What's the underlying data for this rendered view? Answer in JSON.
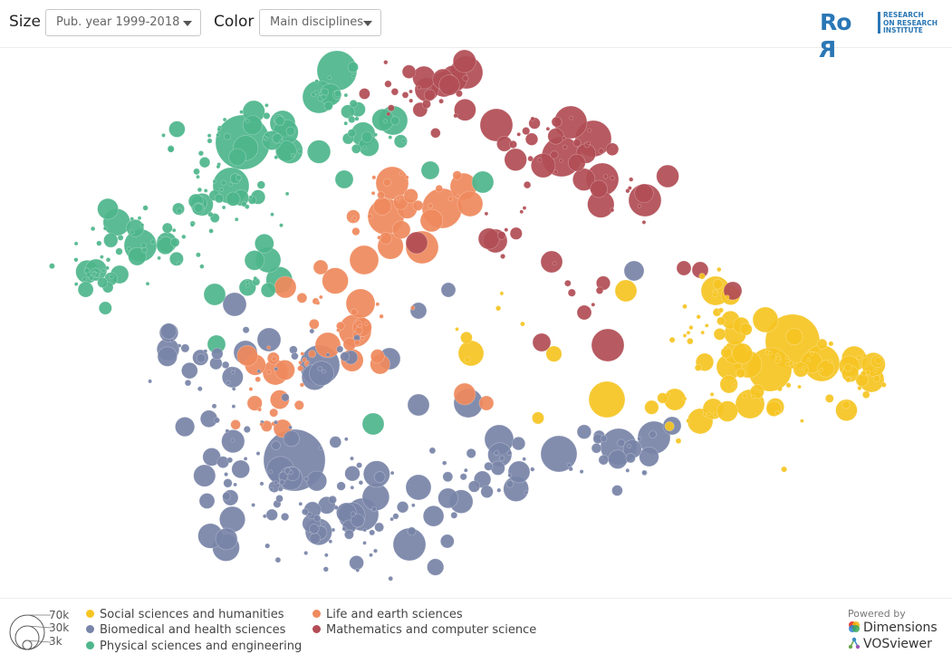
{
  "controls": {
    "size_label": "Size",
    "size_value": "Pub. year 1999-2018",
    "color_label": "Color",
    "color_value": "Main disciplines"
  },
  "logo": {
    "mark": "RoR",
    "line1": "RESEARCH",
    "line2": "ON RESEARCH",
    "line3": "INSTITUTE",
    "color": "#2a77b5"
  },
  "legend": {
    "size_labels": [
      "70k",
      "30k",
      "3k"
    ],
    "items": [
      {
        "label": "Social sciences and humanities",
        "color": "#f5c523"
      },
      {
        "label": "Biomedical and health sciences",
        "color": "#7884a8"
      },
      {
        "label": "Physical sciences and engineering",
        "color": "#4fb68c"
      },
      {
        "label": "Life and earth sciences",
        "color": "#ef8a5e"
      },
      {
        "label": "Mathematics and computer science",
        "color": "#b24d55"
      }
    ]
  },
  "powered": {
    "label": "Powered by",
    "dimensions": "Dimensions",
    "vosviewer": "VOSviewer"
  },
  "chart_data": {
    "type": "scatter",
    "title": "",
    "xlabel": "",
    "ylabel": "",
    "size_variable": "Pub. year 1999-2018",
    "color_variable": "Main disciplines",
    "size_legend": [
      70000,
      30000,
      3000
    ],
    "x_range": [
      0,
      1051
    ],
    "y_range": [
      0,
      607
    ],
    "series": [
      {
        "name": "Physical sciences and engineering",
        "color": "#4fb68c",
        "clusters": [
          [
            270,
            105,
            70,
            42,
            40
          ],
          [
            245,
            170,
            60,
            30,
            36
          ],
          [
            155,
            215,
            55,
            28,
            32
          ],
          [
            105,
            250,
            30,
            22,
            22
          ],
          [
            370,
            55,
            28,
            20,
            16
          ],
          [
            410,
            95,
            35,
            25,
            18
          ],
          [
            290,
            260,
            20,
            20,
            8
          ]
        ],
        "bubbles": [
          [
            372,
            25,
            22
          ],
          [
            268,
            104,
            30
          ],
          [
            352,
            54,
            18
          ],
          [
            255,
            152,
            20
          ],
          [
            434,
            80,
            16
          ],
          [
            155,
            218,
            18
          ],
          [
            312,
            83,
            14
          ],
          [
            296,
            234,
            14
          ],
          [
            380,
            145,
            10
          ],
          [
            237,
            272,
            12
          ],
          [
            239,
            327,
            10
          ],
          [
            412,
            415,
            12
          ],
          [
            533,
            148,
            12
          ],
          [
            475,
            135,
            10
          ],
          [
            106,
            245,
            12
          ],
          [
            132,
            250,
            10
          ]
        ]
      },
      {
        "name": "Mathematics and computer science",
        "color": "#b24d55",
        "clusters": [
          [
            470,
            50,
            50,
            25,
            26
          ],
          [
            620,
            105,
            60,
            35,
            28
          ],
          [
            690,
            155,
            40,
            30,
            14
          ],
          [
            560,
            200,
            40,
            35,
            8
          ],
          [
            630,
            270,
            40,
            40,
            6
          ]
        ],
        "bubbles": [
          [
            515,
            27,
            18
          ],
          [
            490,
            40,
            14
          ],
          [
            548,
            85,
            18
          ],
          [
            630,
            82,
            18
          ],
          [
            655,
            100,
            20
          ],
          [
            620,
            120,
            22
          ],
          [
            665,
            145,
            18
          ],
          [
            712,
            168,
            18
          ],
          [
            671,
            328,
            18
          ],
          [
            547,
            213,
            13
          ],
          [
            609,
            236,
            12
          ],
          [
            598,
            325,
            10
          ],
          [
            460,
            215,
            12
          ],
          [
            755,
            243,
            8
          ],
          [
            773,
            245,
            9
          ],
          [
            809,
            268,
            10
          ],
          [
            645,
            292,
            8
          ]
        ]
      },
      {
        "name": "Life and earth sciences",
        "color": "#ef8a5e",
        "clusters": [
          [
            425,
            180,
            35,
            40,
            18
          ],
          [
            385,
            300,
            45,
            40,
            24
          ],
          [
            320,
            350,
            40,
            30,
            16
          ],
          [
            295,
            400,
            25,
            25,
            10
          ],
          [
            480,
            160,
            40,
            20,
            10
          ]
        ],
        "bubbles": [
          [
            433,
            149,
            18
          ],
          [
            426,
            186,
            20
          ],
          [
            488,
            177,
            22
          ],
          [
            402,
            234,
            16
          ],
          [
            466,
            220,
            18
          ],
          [
            392,
            312,
            18
          ],
          [
            362,
            328,
            14
          ],
          [
            398,
            282,
            16
          ],
          [
            315,
            264,
            12
          ],
          [
            304,
            358,
            14
          ],
          [
            312,
            420,
            10
          ],
          [
            519,
            172,
            14
          ],
          [
            354,
            242,
            8
          ],
          [
            513,
            382,
            12
          ],
          [
            537,
            392,
            8
          ]
        ]
      },
      {
        "name": "Biomedical and health sciences",
        "color": "#7884a8",
        "clusters": [
          [
            380,
            520,
            120,
            60,
            70
          ],
          [
            280,
            470,
            60,
            60,
            40
          ],
          [
            560,
            470,
            70,
            30,
            26
          ],
          [
            690,
            440,
            40,
            25,
            18
          ],
          [
            260,
            380,
            50,
            50,
            18
          ],
          [
            350,
            330,
            70,
            40,
            12
          ],
          [
            200,
            340,
            40,
            40,
            12
          ]
        ],
        "bubbles": [
          [
            325,
            455,
            34
          ],
          [
            353,
            350,
            22
          ],
          [
            400,
            515,
            18
          ],
          [
            452,
            548,
            18
          ],
          [
            462,
            485,
            14
          ],
          [
            551,
            432,
            16
          ],
          [
            617,
            448,
            20
          ],
          [
            683,
            440,
            20
          ],
          [
            722,
            430,
            18
          ],
          [
            517,
            392,
            16
          ],
          [
            462,
            394,
            12
          ],
          [
            430,
            343,
            12
          ],
          [
            259,
            283,
            13
          ],
          [
            297,
            322,
            13
          ],
          [
            271,
            336,
            13
          ],
          [
            700,
            246,
            11
          ],
          [
            495,
            267,
            8
          ],
          [
            462,
            290,
            9
          ],
          [
            742,
            417,
            10
          ],
          [
            573,
            468,
            12
          ]
        ]
      },
      {
        "name": "Social sciences and humanities",
        "color": "#f5c523",
        "clusters": [
          [
            875,
            360,
            65,
            45,
            46
          ],
          [
            790,
            300,
            35,
            45,
            26
          ],
          [
            955,
            360,
            30,
            25,
            18
          ],
          [
            760,
            400,
            35,
            25,
            12
          ],
          [
            550,
            330,
            60,
            60,
            8
          ]
        ],
        "bubbles": [
          [
            875,
            324,
            30
          ],
          [
            850,
            355,
            24
          ],
          [
            907,
            348,
            20
          ],
          [
            845,
            300,
            14
          ],
          [
            805,
            352,
            14
          ],
          [
            790,
            268,
            16
          ],
          [
            670,
            388,
            20
          ],
          [
            745,
            388,
            12
          ],
          [
            773,
            412,
            14
          ],
          [
            520,
            337,
            14
          ],
          [
            691,
            268,
            12
          ],
          [
            962,
            366,
            14
          ],
          [
            828,
            393,
            16
          ]
        ]
      }
    ]
  }
}
